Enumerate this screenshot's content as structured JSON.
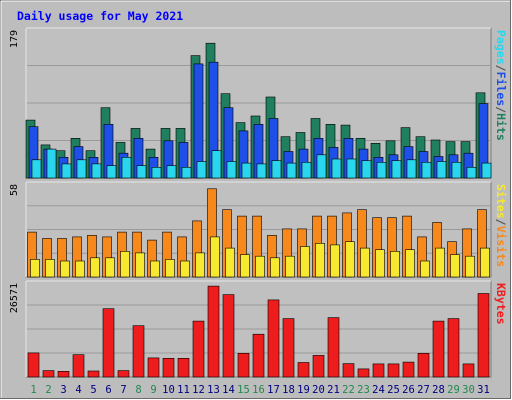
{
  "chart_data": {
    "type": "bar",
    "title": "Daily usage for May 2021",
    "categories": [
      "1",
      "2",
      "3",
      "4",
      "5",
      "6",
      "7",
      "8",
      "9",
      "10",
      "11",
      "12",
      "13",
      "14",
      "15",
      "16",
      "17",
      "18",
      "19",
      "20",
      "21",
      "22",
      "23",
      "24",
      "25",
      "26",
      "27",
      "28",
      "29",
      "30",
      "31"
    ],
    "weekend_days": [
      "1",
      "2",
      "8",
      "9",
      "15",
      "16",
      "22",
      "23",
      "29",
      "30"
    ],
    "panels": [
      {
        "id": "hits-files-pages",
        "ymax": 179,
        "ymax_label": "179",
        "series": [
          {
            "name": "Hits",
            "color": "#1f7f5f",
            "values": [
              70,
              40,
              33,
              48,
              33,
              85,
              43,
              60,
              35,
              60,
              60,
              148,
              163,
              102,
              67,
              75,
              98,
              50,
              55,
              72,
              65,
              64,
              48,
              42,
              45,
              61,
              50,
              46,
              44,
              44,
              103
            ]
          },
          {
            "name": "Files",
            "color": "#1e4fe8",
            "values": [
              62,
              35,
              25,
              38,
              25,
              65,
              30,
              48,
              25,
              45,
              43,
              138,
              140,
              85,
              57,
              65,
              72,
              32,
              35,
              48,
              37,
              48,
              35,
              25,
              28,
              38,
              32,
              26,
              28,
              30,
              90
            ]
          },
          {
            "name": "Pages",
            "color": "#2ad6ee",
            "values": [
              22,
              35,
              17,
              22,
              17,
              15,
              25,
              15,
              13,
              15,
              13,
              20,
              33,
              20,
              18,
              17,
              21,
              18,
              19,
              28,
              23,
              23,
              21,
              19,
              21,
              22,
              19,
              20,
              19,
              13,
              18
            ]
          }
        ],
        "legend_labels": [
          "Pages",
          "/",
          "Files",
          "/",
          "Hits"
        ],
        "legend_colors": [
          "#2ad6ee",
          "#555555",
          "#1e4fe8",
          "#555555",
          "#1f7f5f"
        ]
      },
      {
        "id": "visits-sites",
        "ymax": 58,
        "ymax_label": "58",
        "series": [
          {
            "name": "Visits",
            "color": "#f7881c",
            "values": [
              28,
              24,
              24,
              25,
              26,
              25,
              28,
              28,
              23,
              28,
              25,
              35,
              55,
              42,
              38,
              38,
              26,
              30,
              30,
              38,
              38,
              40,
              42,
              37,
              37,
              38,
              25,
              34,
              22,
              30,
              42
            ]
          },
          {
            "name": "Sites",
            "color": "#f7e830",
            "values": [
              11,
              11,
              10,
              10,
              12,
              12,
              16,
              15,
              10,
              11,
              10,
              15,
              25,
              18,
              14,
              13,
              12,
              13,
              19,
              21,
              20,
              22,
              18,
              17,
              16,
              17,
              10,
              18,
              14,
              13,
              18
            ]
          }
        ],
        "legend_labels": [
          "Sites",
          "/",
          "Visits"
        ],
        "legend_colors": [
          "#f7e830",
          "#555555",
          "#f7881c"
        ]
      },
      {
        "id": "kbytes",
        "ymax": 26571,
        "ymax_label": "26571",
        "series": [
          {
            "name": "KBytes",
            "color": "#ee1c1c",
            "values": [
              6800,
              1800,
              1600,
              6300,
              1700,
              19300,
              1800,
              14500,
              5400,
              5300,
              5300,
              15800,
              25700,
              23300,
              6700,
              12100,
              21800,
              16500,
              4100,
              6100,
              16800,
              3800,
              2300,
              3700,
              3700,
              4200,
              6700,
              15800,
              16500,
              3700,
              23600
            ]
          }
        ],
        "legend_labels": [
          "KBytes"
        ],
        "legend_colors": [
          "#ee1c1c"
        ]
      }
    ]
  }
}
